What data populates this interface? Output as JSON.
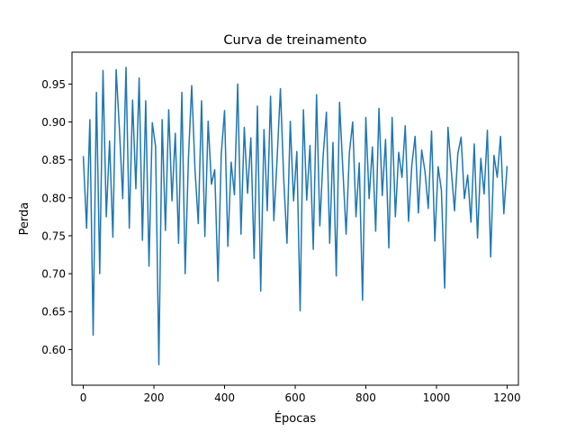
{
  "chart_data": {
    "type": "line",
    "title": "Curva de treinamento",
    "xlabel": "Épocas",
    "ylabel": "Perda",
    "xlim": [
      -32,
      1232
    ],
    "ylim": [
      0.553,
      0.992
    ],
    "x_ticks": [
      0,
      200,
      400,
      600,
      800,
      1000,
      1200
    ],
    "y_ticks": [
      0.6,
      0.65,
      0.7,
      0.75,
      0.8,
      0.85,
      0.9,
      0.95
    ],
    "grid": false,
    "line_color": "#1f77b4",
    "series": [
      {
        "values": [
          0.855,
          0.76,
          0.903,
          0.619,
          0.939,
          0.7,
          0.968,
          0.775,
          0.875,
          0.748,
          0.969,
          0.89,
          0.799,
          0.972,
          0.76,
          0.929,
          0.812,
          0.958,
          0.744,
          0.928,
          0.71,
          0.899,
          0.868,
          0.58,
          0.903,
          0.757,
          0.916,
          0.796,
          0.885,
          0.74,
          0.939,
          0.7,
          0.852,
          0.948,
          0.837,
          0.766,
          0.928,
          0.749,
          0.901,
          0.818,
          0.837,
          0.69,
          0.858,
          0.915,
          0.736,
          0.847,
          0.804,
          0.95,
          0.752,
          0.893,
          0.806,
          0.879,
          0.72,
          0.921,
          0.677,
          0.89,
          0.783,
          0.934,
          0.77,
          0.852,
          0.944,
          0.826,
          0.74,
          0.901,
          0.796,
          0.861,
          0.651,
          0.916,
          0.797,
          0.869,
          0.732,
          0.936,
          0.763,
          0.855,
          0.913,
          0.74,
          0.873,
          0.697,
          0.926,
          0.838,
          0.752,
          0.86,
          0.9,
          0.775,
          0.846,
          0.665,
          0.906,
          0.799,
          0.867,
          0.756,
          0.918,
          0.803,
          0.877,
          0.734,
          0.906,
          0.775,
          0.86,
          0.827,
          0.895,
          0.769,
          0.843,
          0.881,
          0.78,
          0.863,
          0.835,
          0.786,
          0.888,
          0.743,
          0.841,
          0.81,
          0.681,
          0.893,
          0.837,
          0.783,
          0.858,
          0.88,
          0.799,
          0.83,
          0.768,
          0.871,
          0.747,
          0.852,
          0.805,
          0.889,
          0.722,
          0.856,
          0.827,
          0.881,
          0.779,
          0.842
        ]
      }
    ]
  }
}
